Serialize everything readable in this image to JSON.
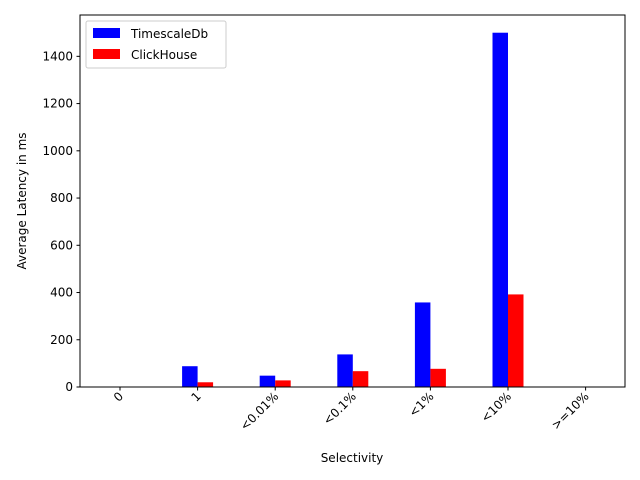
{
  "chart_data": {
    "type": "bar",
    "title": "",
    "xlabel": "Selectivity",
    "ylabel": "Average Latency in ms",
    "categories": [
      "0",
      "1",
      "<0.01%",
      "<0.1%",
      "<1%",
      "<10%",
      ">=10%"
    ],
    "series": [
      {
        "name": "TimescaleDb",
        "color": "#0000ff",
        "values": [
          0,
          88,
          48,
          138,
          358,
          1500,
          0
        ]
      },
      {
        "name": "ClickHouse",
        "color": "#ff0000",
        "values": [
          0,
          20,
          28,
          67,
          77,
          392,
          0
        ]
      }
    ],
    "ylim": [
      0,
      1575
    ],
    "yticks": [
      0,
      200,
      400,
      600,
      800,
      1000,
      1200,
      1400
    ],
    "grid": false,
    "legend_position": "top-left"
  }
}
